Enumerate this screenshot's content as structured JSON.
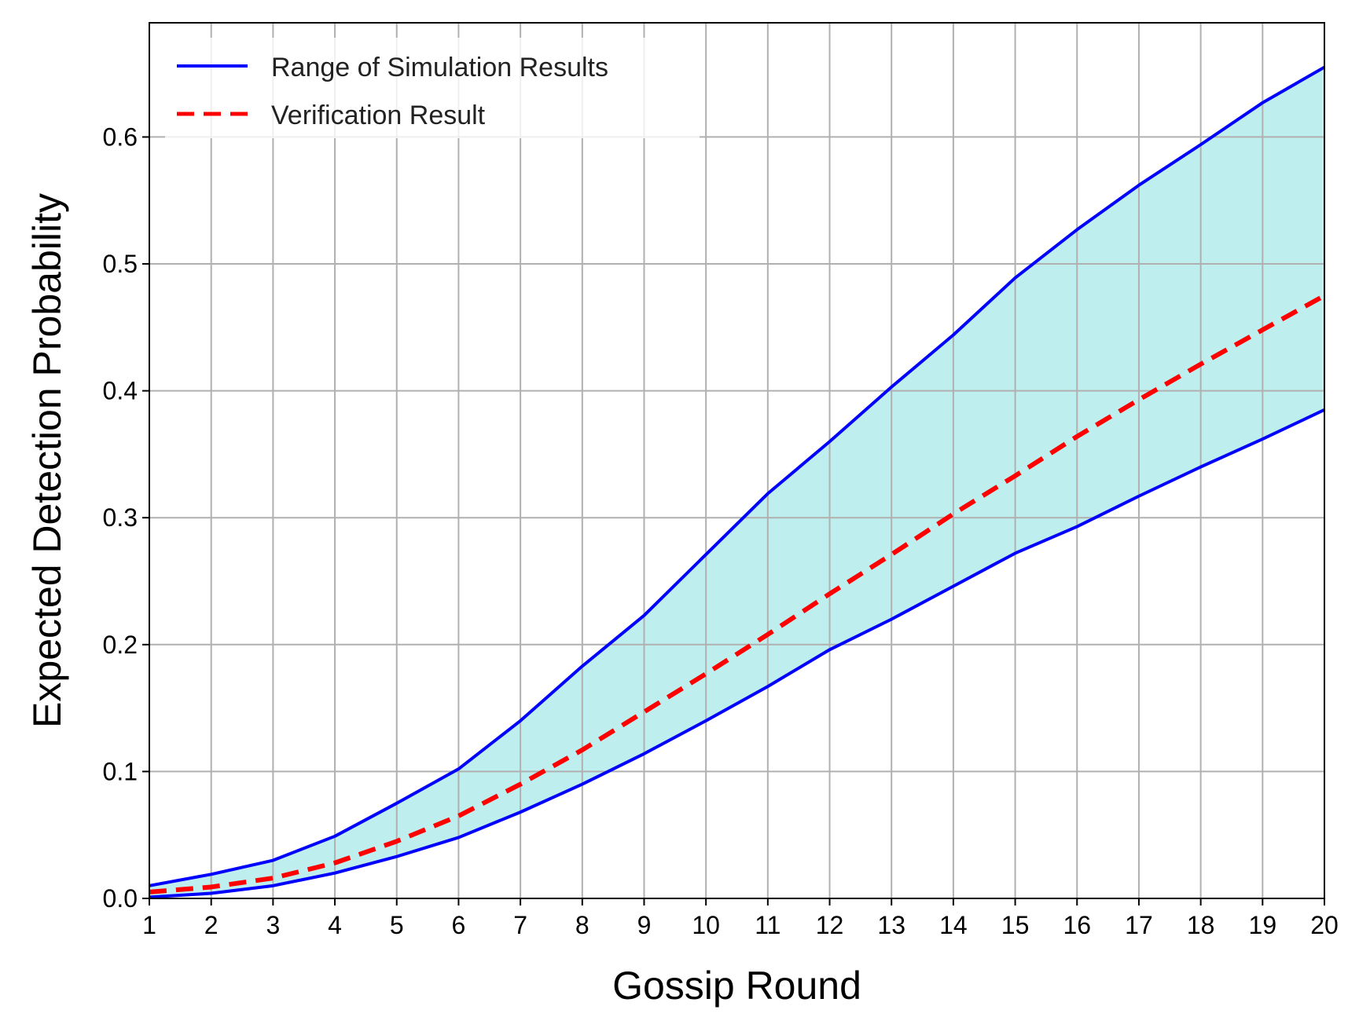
{
  "chart_data": {
    "type": "line",
    "xlabel": "Gossip Round",
    "ylabel": "Expected Detection Probability",
    "x": [
      1,
      2,
      3,
      4,
      5,
      6,
      7,
      8,
      9,
      10,
      11,
      12,
      13,
      14,
      15,
      16,
      17,
      18,
      19,
      20
    ],
    "xlim": [
      1,
      20
    ],
    "ylim": [
      0,
      0.69
    ],
    "xticks": [
      "1",
      "2",
      "3",
      "4",
      "5",
      "6",
      "7",
      "8",
      "9",
      "10",
      "11",
      "12",
      "13",
      "14",
      "15",
      "16",
      "17",
      "18",
      "19",
      "20"
    ],
    "yticks": [
      "0.0",
      "0.1",
      "0.2",
      "0.3",
      "0.4",
      "0.5",
      "0.6"
    ],
    "grid": true,
    "legend_position": "top-left",
    "series": [
      {
        "name": "Range of Simulation Results",
        "style": "solid",
        "color": "#0000ff",
        "upper": [
          0.01,
          0.019,
          0.03,
          0.049,
          0.075,
          0.102,
          0.14,
          0.183,
          0.223,
          0.271,
          0.319,
          0.36,
          0.403,
          0.444,
          0.489,
          0.527,
          0.562,
          0.594,
          0.627,
          0.655
        ],
        "lower": [
          0.001,
          0.004,
          0.01,
          0.02,
          0.033,
          0.048,
          0.068,
          0.09,
          0.114,
          0.14,
          0.167,
          0.196,
          0.22,
          0.246,
          0.272,
          0.293,
          0.317,
          0.34,
          0.362,
          0.385
        ]
      },
      {
        "name": "Verification Result",
        "style": "dashed",
        "color": "#ff0000",
        "values": [
          0.005,
          0.009,
          0.016,
          0.028,
          0.045,
          0.065,
          0.09,
          0.117,
          0.147,
          0.177,
          0.208,
          0.24,
          0.271,
          0.303,
          0.333,
          0.364,
          0.393,
          0.421,
          0.448,
          0.475
        ]
      }
    ],
    "band_color": "#bfeeee",
    "grid_color": "#b0b0b0"
  }
}
